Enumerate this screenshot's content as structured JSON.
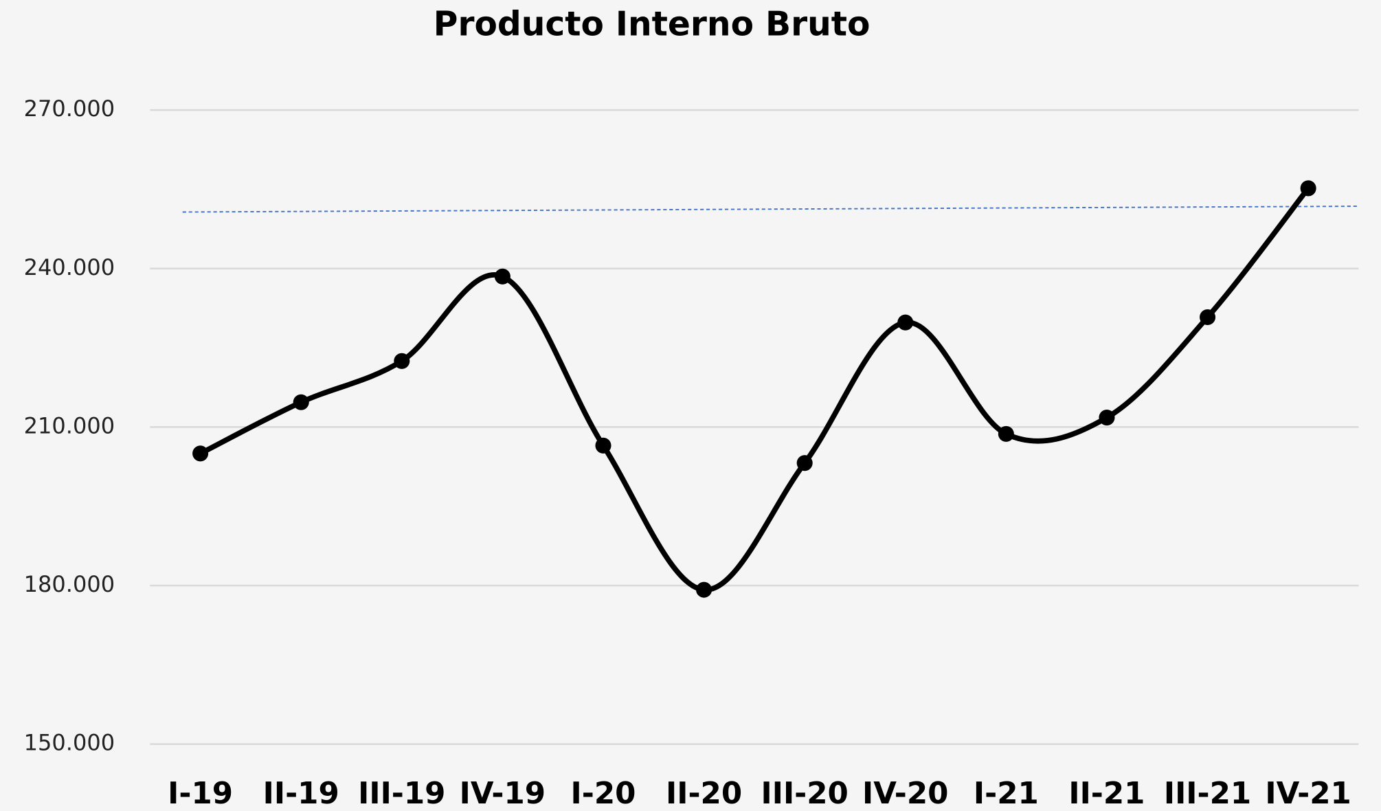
{
  "chart_data": {
    "type": "line",
    "title": "Producto Interno Bruto",
    "categories": [
      "I-19",
      "II-19",
      "III-19",
      "IV-19",
      "I-20",
      "II-20",
      "III-20",
      "IV-20",
      "I-21",
      "II-21",
      "III-21",
      "IV-21"
    ],
    "series": [
      {
        "name": "Producto Interno Bruto",
        "color": "#000000",
        "values": [
          205000,
          214700,
          222500,
          238500,
          206500,
          179200,
          203200,
          229800,
          208700,
          211800,
          230800,
          255200
        ]
      }
    ],
    "trend_line": {
      "color": "#4472c4",
      "values": [
        250700,
        251800
      ]
    },
    "ylim": [
      150000,
      270000
    ],
    "yticks": [
      {
        "value": 150000,
        "label": "150.000"
      },
      {
        "value": 180000,
        "label": "180.000"
      },
      {
        "value": 210000,
        "label": "210.000"
      },
      {
        "value": 240000,
        "label": "240.000"
      },
      {
        "value": 270000,
        "label": "270.000"
      }
    ],
    "grid": true,
    "smooth": true
  }
}
